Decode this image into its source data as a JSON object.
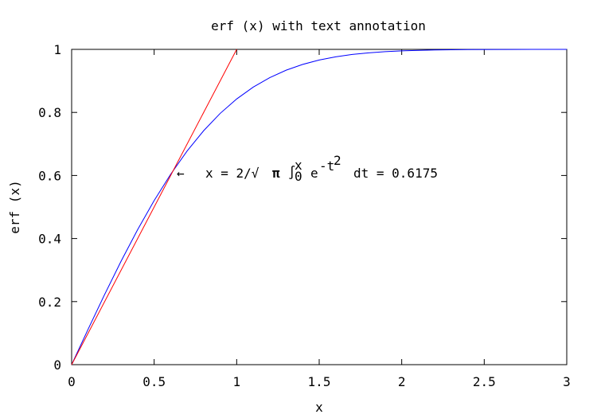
{
  "chart_data": {
    "type": "line",
    "title": "erf (x) with text annotation",
    "xlabel": "x",
    "ylabel": "erf (x)",
    "xlim": [
      0,
      3
    ],
    "ylim": [
      0,
      1
    ],
    "xticks": [
      0,
      0.5,
      1,
      1.5,
      2,
      2.5,
      3
    ],
    "xtick_labels": [
      "0",
      "0.5",
      "1",
      "1.5",
      "2",
      "2.5",
      "3"
    ],
    "yticks": [
      0,
      0.2,
      0.4,
      0.6,
      0.8,
      1
    ],
    "ytick_labels": [
      "0",
      "0.2",
      "0.4",
      "0.6",
      "0.8",
      "1"
    ],
    "grid": false,
    "series": [
      {
        "color": "#0000ff",
        "x": [
          0,
          0.1,
          0.2,
          0.3,
          0.4,
          0.5,
          0.6,
          0.7,
          0.8,
          0.9,
          1.0,
          1.1,
          1.2,
          1.3,
          1.4,
          1.5,
          1.6,
          1.7,
          1.8,
          1.9,
          2.0,
          2.2,
          2.4,
          2.6,
          2.8,
          3.0
        ],
        "y": [
          0,
          0.1125,
          0.2227,
          0.3286,
          0.4284,
          0.5205,
          0.6039,
          0.6778,
          0.7421,
          0.7969,
          0.8427,
          0.8802,
          0.9103,
          0.934,
          0.9523,
          0.9661,
          0.9763,
          0.9838,
          0.9891,
          0.9928,
          0.9953,
          0.9981,
          0.9993,
          0.9998,
          0.9999,
          1.0
        ]
      },
      {
        "color": "#ff0000",
        "x": [
          0,
          1.0
        ],
        "y": [
          0,
          1.0
        ]
      }
    ],
    "annotation": {
      "x": 0.6175,
      "y": 0.6175,
      "arrow": "←",
      "lhs": "x = 2/√",
      "pi": "π",
      "integral": "∫",
      "int_upper": "x",
      "int_lower": "0",
      "e_base": "e",
      "exponent": "-t",
      "exp_power": "2",
      "tail": "dt = 0.6175"
    }
  }
}
